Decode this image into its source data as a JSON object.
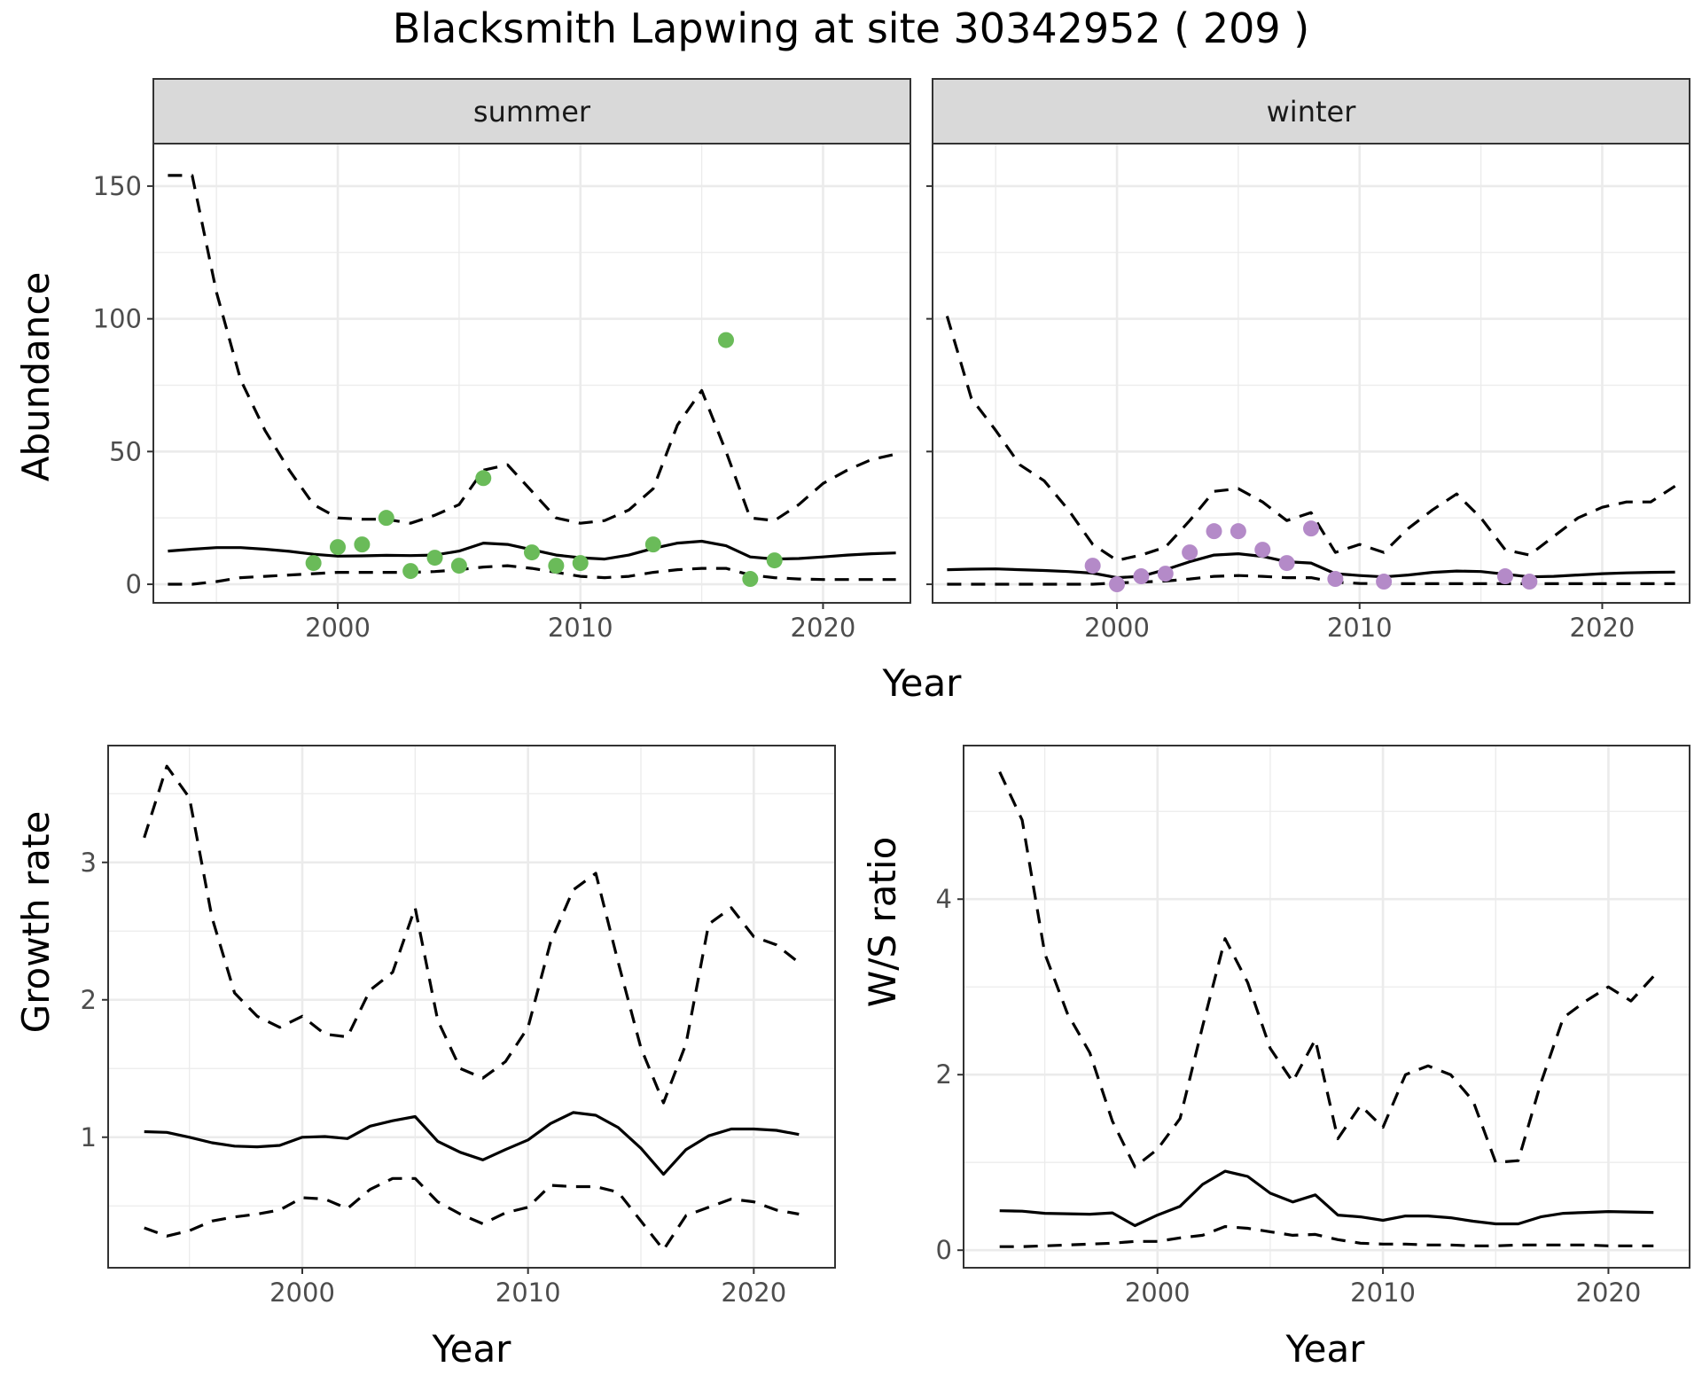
{
  "figure": {
    "title": "Blacksmith Lapwing at site 30342952 ( 209 )"
  },
  "colors": {
    "summer_points": "#6abb59",
    "winter_points": "#b48ac8",
    "lines": "#000000",
    "strip_fill": "#d9d9d9"
  },
  "chart_data": [
    {
      "id": "abundance-summer",
      "type": "line",
      "facet": "summer",
      "xlabel": "Year",
      "ylabel": "Abundance",
      "xlim": [
        1992.4,
        2023.6
      ],
      "ylim": [
        -7,
        166
      ],
      "x_ticks": [
        2000,
        2010,
        2020
      ],
      "y_ticks": [
        0,
        50,
        100,
        150
      ],
      "grid": true,
      "x": [
        1993,
        1994,
        1995,
        1996,
        1997,
        1998,
        1999,
        2000,
        2001,
        2002,
        2003,
        2004,
        2005,
        2006,
        2007,
        2008,
        2009,
        2010,
        2011,
        2012,
        2013,
        2014,
        2015,
        2016,
        2017,
        2018,
        2019,
        2020,
        2021,
        2022,
        2023
      ],
      "series": [
        {
          "role": "estimate",
          "values": [
            12.5,
            13.2,
            13.8,
            13.8,
            13.2,
            12.4,
            11.3,
            10.6,
            10.7,
            10.9,
            10.8,
            11.0,
            12.5,
            15.5,
            15.0,
            13.0,
            11.0,
            10.0,
            9.5,
            11.0,
            13.5,
            15.5,
            16.2,
            14.5,
            10.3,
            9.5,
            9.7,
            10.3,
            11.0,
            11.5,
            11.8
          ]
        },
        {
          "role": "upper",
          "values": [
            154,
            154,
            110,
            77,
            58,
            43,
            30,
            25,
            24.5,
            24.5,
            23,
            26,
            30,
            43,
            45,
            35,
            25,
            23,
            24,
            28,
            36,
            60,
            73,
            50,
            25,
            24,
            30,
            38,
            43,
            47,
            49
          ]
        },
        {
          "role": "lower",
          "values": [
            0,
            0,
            1,
            2.5,
            3,
            3.5,
            4,
            4.5,
            4.5,
            4.5,
            4.5,
            4.8,
            5.5,
            6.5,
            7,
            6,
            4.5,
            3,
            2.5,
            3,
            4.5,
            5.5,
            6,
            6,
            3.5,
            2.5,
            2,
            1.8,
            1.8,
            1.8,
            1.8
          ]
        },
        {
          "role": "observed",
          "points": [
            [
              1999,
              8
            ],
            [
              2000,
              14
            ],
            [
              2001,
              15
            ],
            [
              2002,
              25
            ],
            [
              2003,
              5
            ],
            [
              2004,
              10
            ],
            [
              2005,
              7
            ],
            [
              2006,
              40
            ],
            [
              2008,
              12
            ],
            [
              2009,
              7
            ],
            [
              2010,
              8
            ],
            [
              2013,
              15
            ],
            [
              2016,
              92
            ],
            [
              2017,
              2
            ],
            [
              2018,
              9
            ]
          ]
        }
      ]
    },
    {
      "id": "abundance-winter",
      "type": "line",
      "facet": "winter",
      "xlabel": "Year",
      "ylabel": "Abundance",
      "xlim": [
        1992.4,
        2023.6
      ],
      "ylim": [
        -7,
        166
      ],
      "x_ticks": [
        2000,
        2010,
        2020
      ],
      "y_ticks": [
        0,
        50,
        100,
        150
      ],
      "grid": true,
      "x": [
        1993,
        1994,
        1995,
        1996,
        1997,
        1998,
        1999,
        2000,
        2001,
        2002,
        2003,
        2004,
        2005,
        2006,
        2007,
        2008,
        2009,
        2010,
        2011,
        2012,
        2013,
        2014,
        2015,
        2016,
        2017,
        2018,
        2019,
        2020,
        2021,
        2022,
        2023
      ],
      "series": [
        {
          "role": "estimate",
          "values": [
            5.5,
            5.7,
            5.8,
            5.5,
            5.2,
            4.8,
            4.2,
            2.5,
            3.0,
            5.5,
            8.5,
            11.0,
            11.5,
            10.5,
            8.5,
            8.0,
            4.0,
            3.3,
            2.8,
            3.5,
            4.5,
            5.0,
            4.8,
            3.8,
            2.8,
            3.0,
            3.5,
            4.0,
            4.3,
            4.5,
            4.6
          ]
        },
        {
          "role": "upper",
          "values": [
            101,
            70,
            58,
            45,
            39,
            28,
            15,
            9,
            11,
            14,
            24,
            35,
            36,
            31,
            24,
            27,
            12,
            15,
            12,
            21,
            28,
            34,
            25,
            13,
            11,
            18,
            25,
            29,
            31,
            31,
            37
          ]
        },
        {
          "role": "lower",
          "values": [
            0,
            0,
            0,
            0,
            0,
            0,
            0,
            0.5,
            0.8,
            1.2,
            2.0,
            3.0,
            3.3,
            3.0,
            2.5,
            2.5,
            0.8,
            0.3,
            0.2,
            0.2,
            0.2,
            0.2,
            0.2,
            0.2,
            0.2,
            0.2,
            0.2,
            0.2,
            0.2,
            0.2,
            0.2
          ]
        },
        {
          "role": "observed",
          "points": [
            [
              1999,
              7
            ],
            [
              2000,
              0
            ],
            [
              2001,
              3
            ],
            [
              2002,
              4
            ],
            [
              2003,
              12
            ],
            [
              2004,
              20
            ],
            [
              2005,
              20
            ],
            [
              2006,
              13
            ],
            [
              2007,
              8
            ],
            [
              2008,
              21
            ],
            [
              2009,
              2
            ],
            [
              2011,
              1
            ],
            [
              2016,
              3
            ],
            [
              2017,
              1
            ]
          ]
        }
      ]
    },
    {
      "id": "growth-rate",
      "type": "line",
      "xlabel": "Year",
      "ylabel": "Growth rate",
      "xlim": [
        1991.4,
        2023.6
      ],
      "ylim": [
        0.05,
        3.85
      ],
      "x_ticks": [
        2000,
        2010,
        2020
      ],
      "y_ticks": [
        1,
        2,
        3
      ],
      "grid": true,
      "x": [
        1993,
        1994,
        1995,
        1996,
        1997,
        1998,
        1999,
        2000,
        2001,
        2002,
        2003,
        2004,
        2005,
        2006,
        2007,
        2008,
        2009,
        2010,
        2011,
        2012,
        2013,
        2014,
        2015,
        2016,
        2017,
        2018,
        2019,
        2020,
        2021,
        2022
      ],
      "series": [
        {
          "role": "estimate",
          "values": [
            1.04,
            1.035,
            1.0,
            0.96,
            0.935,
            0.93,
            0.94,
            1.0,
            1.005,
            0.99,
            1.08,
            1.12,
            1.15,
            0.97,
            0.89,
            0.835,
            0.91,
            0.98,
            1.1,
            1.18,
            1.16,
            1.07,
            0.92,
            0.73,
            0.91,
            1.01,
            1.06,
            1.06,
            1.05,
            1.02
          ]
        },
        {
          "role": "upper",
          "values": [
            3.18,
            3.7,
            3.47,
            2.6,
            2.05,
            1.88,
            1.8,
            1.88,
            1.75,
            1.73,
            2.07,
            2.2,
            2.67,
            1.85,
            1.5,
            1.43,
            1.55,
            1.8,
            2.42,
            2.8,
            2.92,
            2.27,
            1.65,
            1.25,
            1.68,
            2.55,
            2.67,
            2.46,
            2.4,
            2.27
          ]
        },
        {
          "role": "lower",
          "values": [
            0.34,
            0.28,
            0.32,
            0.39,
            0.42,
            0.44,
            0.47,
            0.56,
            0.55,
            0.48,
            0.62,
            0.7,
            0.7,
            0.53,
            0.44,
            0.37,
            0.45,
            0.49,
            0.65,
            0.64,
            0.64,
            0.6,
            0.39,
            0.18,
            0.43,
            0.49,
            0.55,
            0.53,
            0.47,
            0.44
          ]
        }
      ]
    },
    {
      "id": "ws-ratio",
      "type": "line",
      "xlabel": "Year",
      "ylabel": "W/S ratio",
      "xlim": [
        1991.4,
        2023.6
      ],
      "ylim": [
        -0.2,
        5.75
      ],
      "x_ticks": [
        2000,
        2010,
        2020
      ],
      "y_ticks": [
        0,
        2,
        4
      ],
      "grid": true,
      "x": [
        1993,
        1994,
        1995,
        1996,
        1997,
        1998,
        1999,
        2000,
        2001,
        2002,
        2003,
        2004,
        2005,
        2006,
        2007,
        2008,
        2009,
        2010,
        2011,
        2012,
        2013,
        2014,
        2015,
        2016,
        2017,
        2018,
        2019,
        2020,
        2021,
        2022
      ],
      "series": [
        {
          "role": "estimate",
          "values": [
            0.45,
            0.445,
            0.42,
            0.415,
            0.41,
            0.425,
            0.28,
            0.4,
            0.5,
            0.75,
            0.9,
            0.84,
            0.65,
            0.55,
            0.63,
            0.4,
            0.38,
            0.34,
            0.39,
            0.39,
            0.37,
            0.33,
            0.3,
            0.3,
            0.38,
            0.42,
            0.43,
            0.44,
            0.435,
            0.43
          ]
        },
        {
          "role": "upper",
          "values": [
            5.45,
            4.9,
            3.38,
            2.7,
            2.25,
            1.47,
            0.95,
            1.15,
            1.5,
            2.55,
            3.55,
            3.05,
            2.3,
            1.92,
            2.4,
            1.27,
            1.65,
            1.4,
            2.0,
            2.1,
            2.0,
            1.7,
            1.0,
            1.02,
            1.9,
            2.65,
            2.84,
            3.0,
            2.84,
            3.12
          ]
        },
        {
          "role": "lower",
          "values": [
            0.04,
            0.04,
            0.05,
            0.06,
            0.07,
            0.08,
            0.1,
            0.1,
            0.14,
            0.17,
            0.27,
            0.25,
            0.21,
            0.17,
            0.18,
            0.12,
            0.08,
            0.07,
            0.07,
            0.06,
            0.06,
            0.05,
            0.05,
            0.06,
            0.06,
            0.06,
            0.06,
            0.05,
            0.05,
            0.05
          ]
        }
      ]
    }
  ],
  "facets": {
    "summer": "summer",
    "winter": "winter"
  },
  "axis_titles": {
    "abundance_x": "Year",
    "abundance_y": "Abundance",
    "growth_x": "Year",
    "growth_y": "Growth rate",
    "ratio_x": "Year",
    "ratio_y": "W/S ratio"
  }
}
